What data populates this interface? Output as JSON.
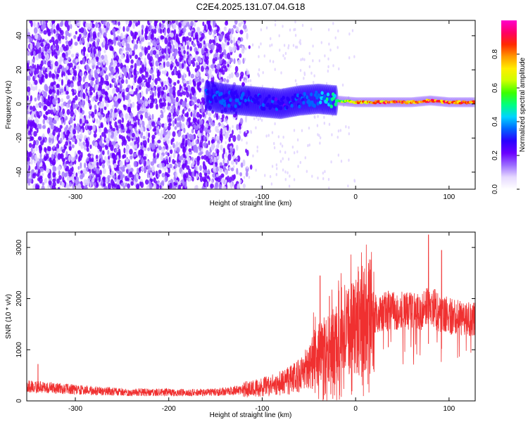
{
  "title": "C2E4.2025.131.07.04.G18",
  "chart_data": [
    {
      "type": "heatmap",
      "xlabel": "Height of straight line (km)",
      "ylabel": "Frequency (Hz)",
      "xlim": [
        -352,
        128
      ],
      "ylim": [
        -50,
        49
      ],
      "xticks": [
        -300,
        -200,
        -100,
        0,
        100
      ],
      "yticks": [
        -40,
        -20,
        0,
        20,
        40
      ],
      "colorbar": {
        "label": "Normalized spectral amplitude",
        "range": [
          0.0,
          1.0
        ],
        "ticks": [
          0.0,
          0.2,
          0.4,
          0.6,
          0.8
        ],
        "colormap": [
          "#ffffff",
          "#e6d9ff",
          "#9b6cff",
          "#6a00ff",
          "#2a00ff",
          "#0064ff",
          "#00d4ff",
          "#00ff80",
          "#3cff00",
          "#ccff00",
          "#ffee00",
          "#ff9900",
          "#ff2a00",
          "#ff0066",
          "#ff00cc"
        ]
      },
      "features": {
        "noise_region_x": [
          -352,
          -150
        ],
        "signal_band": [
          {
            "x": -160,
            "f": 5,
            "amp": 0.35
          },
          {
            "x": -140,
            "f": 3,
            "amp": 0.35
          },
          {
            "x": -120,
            "f": 2,
            "amp": 0.35
          },
          {
            "x": -100,
            "f": 1,
            "amp": 0.32
          },
          {
            "x": -80,
            "f": 0,
            "amp": 0.32
          },
          {
            "x": -60,
            "f": 2,
            "amp": 0.35
          },
          {
            "x": -40,
            "f": 3,
            "amp": 0.4
          },
          {
            "x": -20,
            "f": 2,
            "amp": 0.55
          },
          {
            "x": 0,
            "f": 1,
            "amp": 0.8
          },
          {
            "x": 20,
            "f": 1,
            "amp": 0.85
          },
          {
            "x": 40,
            "f": 1,
            "amp": 0.9
          },
          {
            "x": 60,
            "f": 1,
            "amp": 0.9
          },
          {
            "x": 80,
            "f": 2,
            "amp": 0.9
          },
          {
            "x": 100,
            "f": 1,
            "amp": 0.9
          },
          {
            "x": 128,
            "f": 1,
            "amp": 0.9
          }
        ]
      }
    },
    {
      "type": "line",
      "xlabel": "Height of straight line (km)",
      "ylabel": "SNR (10 * v/v)",
      "xlim": [
        -352,
        128
      ],
      "ylim": [
        0,
        3300
      ],
      "xticks": [
        -300,
        -200,
        -100,
        0,
        100
      ],
      "yticks": [
        0,
        1000,
        2000,
        3000
      ],
      "color": "#f03030",
      "series": [
        {
          "x": [
            -350,
            -330,
            -300,
            -270,
            -240,
            -210,
            -180,
            -150,
            -130,
            -110,
            -90,
            -70,
            -60,
            -50,
            -45,
            -40,
            -35,
            -30,
            -25,
            -20,
            -10,
            0,
            10,
            20,
            30,
            40,
            50,
            60,
            70,
            75,
            80,
            85,
            90,
            95,
            100,
            110,
            120,
            128
          ],
          "y": [
            280,
            260,
            220,
            190,
            170,
            170,
            160,
            170,
            200,
            240,
            300,
            400,
            500,
            650,
            800,
            900,
            950,
            1000,
            1050,
            1100,
            1250,
            1450,
            1600,
            1700,
            1750,
            1750,
            1750,
            1750,
            1750,
            1800,
            1900,
            1800,
            1700,
            1700,
            1650,
            1650,
            1600,
            1600
          ],
          "spikes": [
            {
              "x": -340,
              "y": 720
            },
            {
              "x": -38,
              "y": 2450
            },
            {
              "x": -28,
              "y": 2050
            },
            {
              "x": -18,
              "y": 2150
            },
            {
              "x": 5,
              "y": 2000
            },
            {
              "x": 35,
              "y": 2150
            },
            {
              "x": 78,
              "y": 3250
            },
            {
              "x": 92,
              "y": 2950
            }
          ]
        }
      ]
    }
  ]
}
